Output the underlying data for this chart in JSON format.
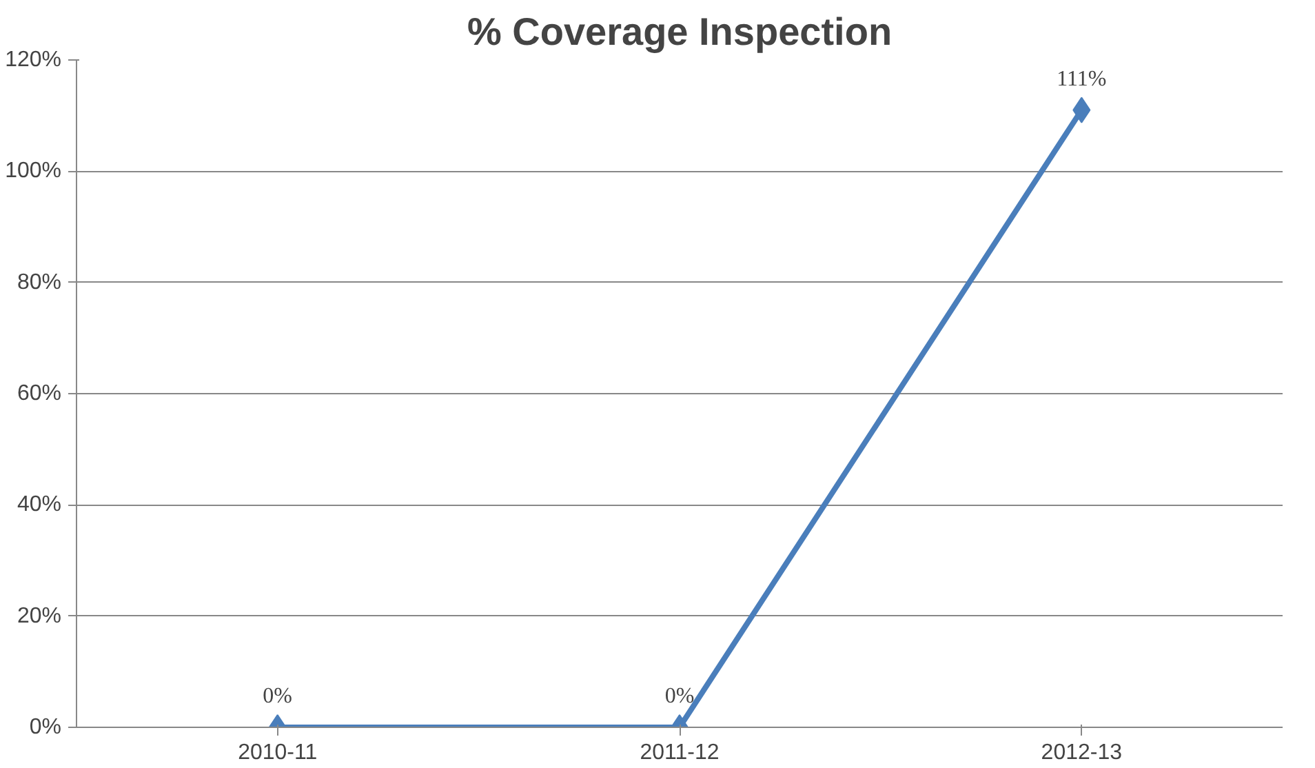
{
  "chart_data": {
    "type": "line",
    "title": "% Coverage Inspection",
    "categories": [
      "2010-11",
      "2011-12",
      "2012-13"
    ],
    "values": [
      0,
      0,
      111
    ],
    "value_labels": [
      "0%",
      "0%",
      "111%"
    ],
    "color": "#4a7ebb",
    "ylim": [
      0,
      120
    ],
    "yticks": [
      {
        "value": 0,
        "label": "0%"
      },
      {
        "value": 20,
        "label": "20%"
      },
      {
        "value": 40,
        "label": "40%"
      },
      {
        "value": 60,
        "label": "60%"
      },
      {
        "value": 80,
        "label": "80%"
      },
      {
        "value": 100,
        "label": "100%"
      },
      {
        "value": 120,
        "label": "120%"
      }
    ],
    "grid": "y",
    "marker": "diamond",
    "line_style": "solid"
  }
}
